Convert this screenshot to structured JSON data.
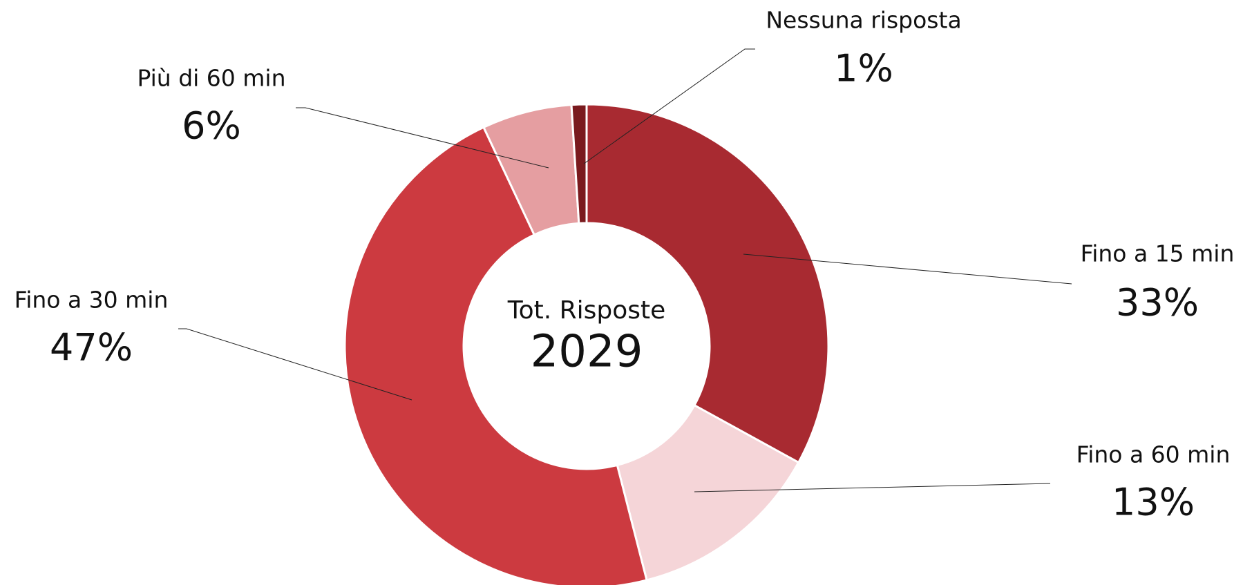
{
  "chart_data": {
    "type": "pie",
    "center_title": "Tot. Risposte",
    "center_value": 2029,
    "categories": [
      "Fino a 15 min",
      "Fino a 60 min",
      "Fino a 30 min",
      "Più di 60 min",
      "Nessuna risposta"
    ],
    "values": [
      33,
      13,
      47,
      6,
      1
    ],
    "value_labels": [
      "33%",
      "13%",
      "47%",
      "6%",
      "1%"
    ],
    "colors": [
      "#a82a31",
      "#f5d5d8",
      "#cc3a40",
      "#e59ea1",
      "#7a1a1e"
    ]
  }
}
